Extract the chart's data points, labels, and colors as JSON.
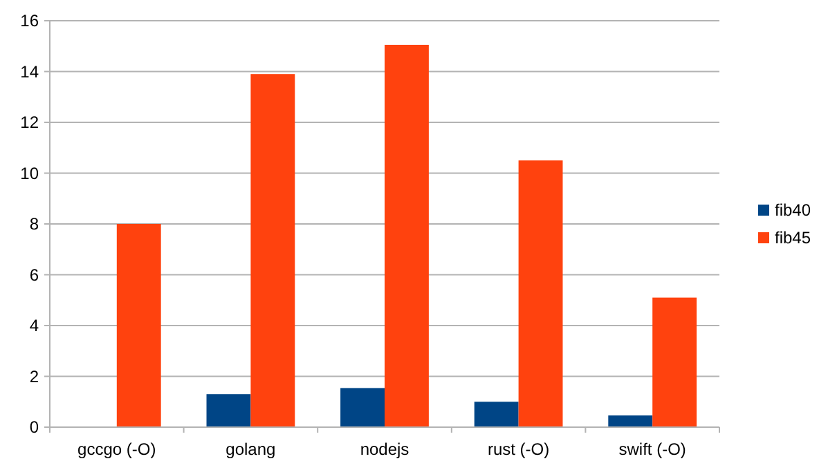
{
  "chart_data": {
    "type": "bar",
    "categories": [
      "gccgo (-O)",
      "golang",
      "nodejs",
      "rust (-O)",
      "swift (-O)"
    ],
    "series": [
      {
        "name": "fib40",
        "color": "#004586",
        "values": [
          null,
          1.3,
          1.54,
          1.0,
          0.46
        ]
      },
      {
        "name": "fib45",
        "color": "#ff420e",
        "values": [
          8.0,
          13.9,
          15.05,
          10.5,
          5.1
        ]
      }
    ],
    "ylim": [
      0,
      16
    ],
    "yticks": [
      0,
      2,
      4,
      6,
      8,
      10,
      12,
      14,
      16
    ],
    "grid": "y",
    "legend": "right"
  }
}
